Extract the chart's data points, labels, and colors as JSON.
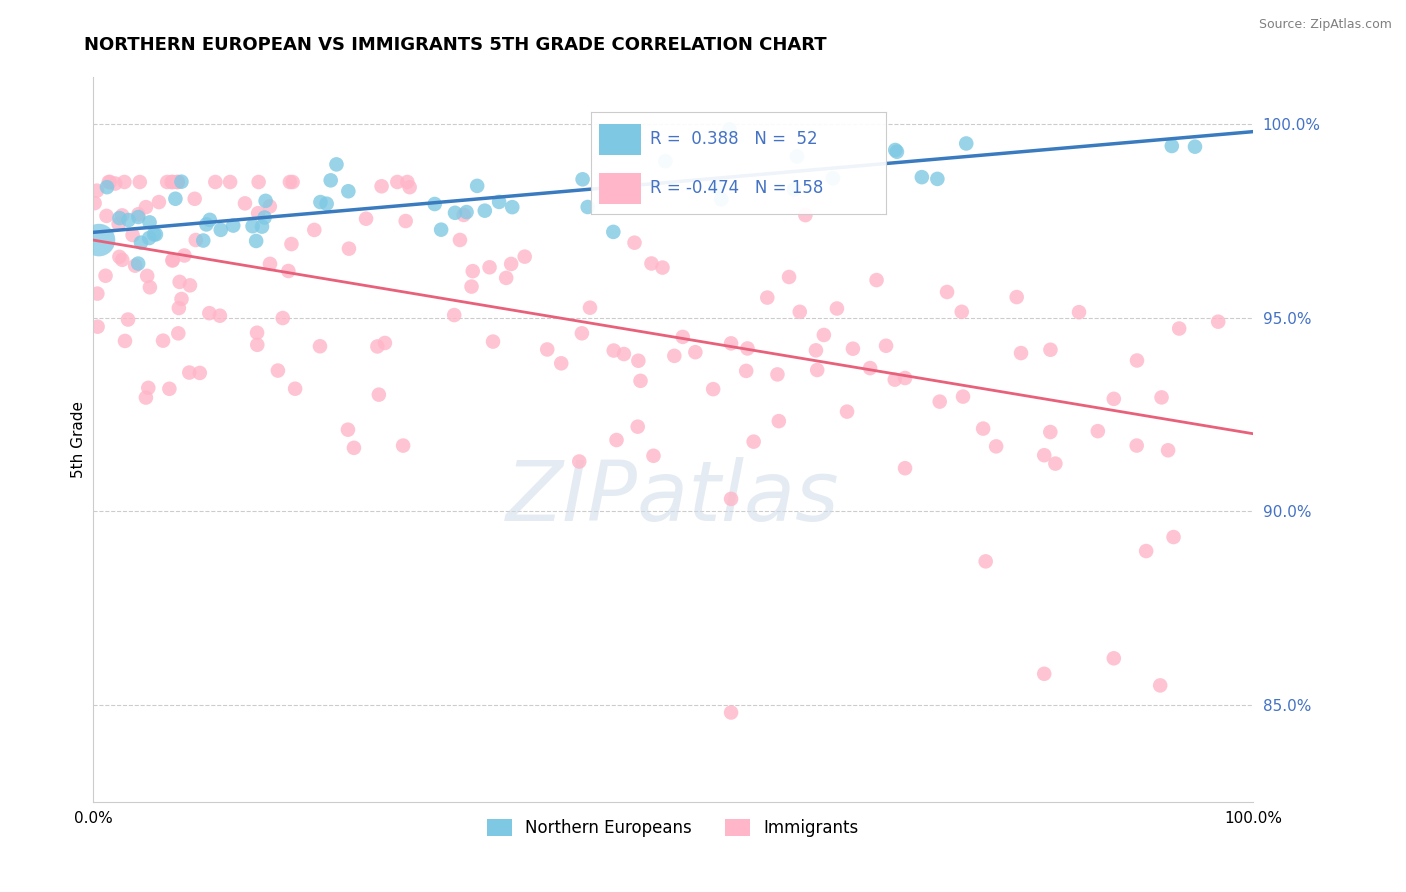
{
  "title": "NORTHERN EUROPEAN VS IMMIGRANTS 5TH GRADE CORRELATION CHART",
  "source": "Source: ZipAtlas.com",
  "ylabel": "5th Grade",
  "legend_blue_R": "0.388",
  "legend_blue_N": "52",
  "legend_pink_R": "-0.474",
  "legend_pink_N": "158",
  "legend_label_blue": "Northern Europeans",
  "legend_label_pink": "Immigrants",
  "blue_color": "#7ec8e3",
  "pink_color": "#ffb6c8",
  "blue_line_color": "#3a7bbf",
  "pink_line_color": "#e8607a",
  "blue_line_x0": 0.0,
  "blue_line_x1": 1.0,
  "blue_line_y0": 0.972,
  "blue_line_y1": 0.998,
  "pink_line_x0": 0.0,
  "pink_line_x1": 1.0,
  "pink_line_y0": 0.97,
  "pink_line_y1": 0.92,
  "xlim": [
    0.0,
    1.0
  ],
  "ylim": [
    0.825,
    1.012
  ],
  "yticks": [
    0.85,
    0.9,
    0.95,
    1.0
  ],
  "xticks": [
    0.0,
    1.0
  ],
  "title_fontsize": 13,
  "source_fontsize": 9,
  "tick_fontsize": 11,
  "watermark_text": "ZIPatlas",
  "watermark_color": "#d0dce8",
  "watermark_fontsize": 60,
  "grid_color": "#cccccc",
  "spine_color": "#cccccc"
}
